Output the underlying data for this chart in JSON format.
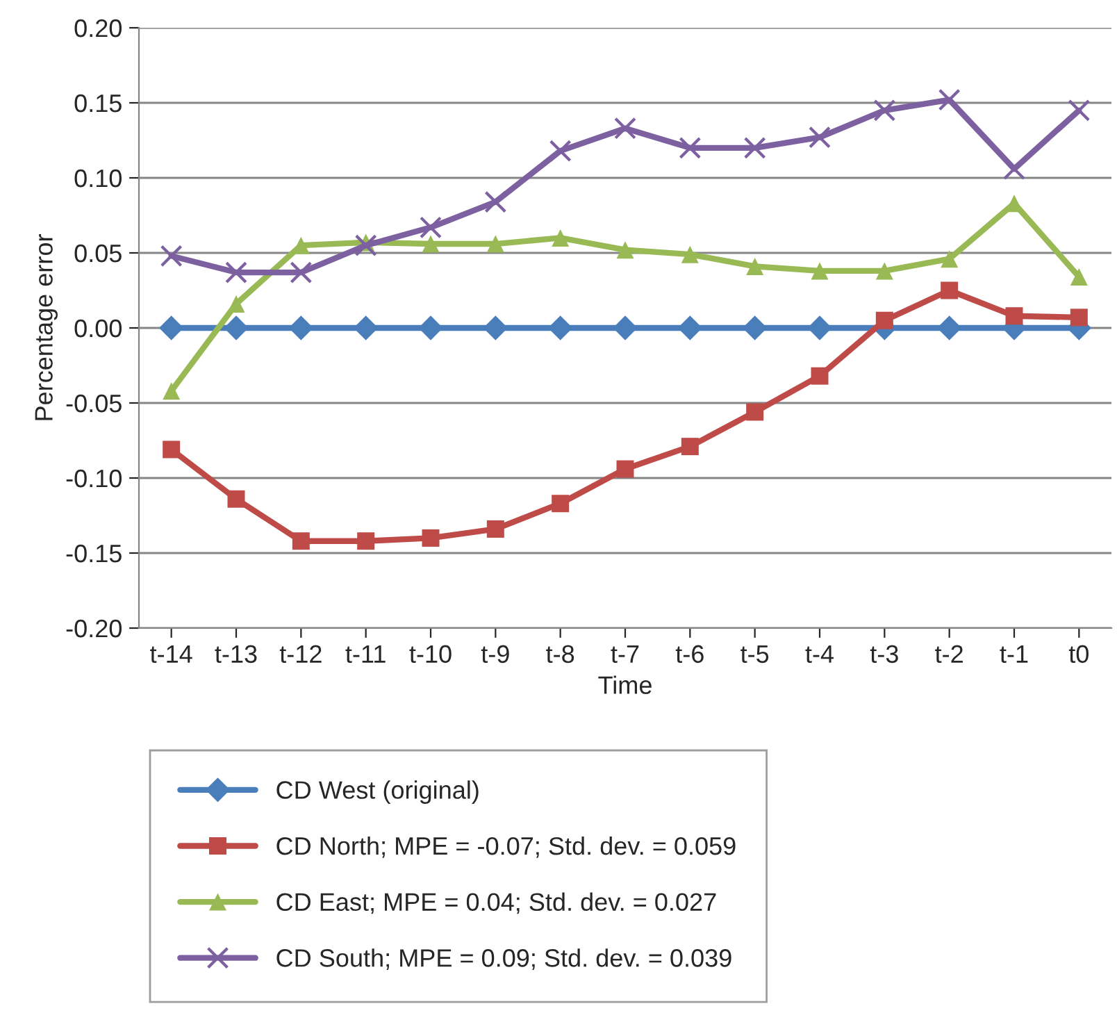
{
  "chart_data": {
    "type": "line",
    "xlabel": "Time",
    "ylabel": "Percentage error",
    "categories": [
      "t-14",
      "t-13",
      "t-12",
      "t-11",
      "t-10",
      "t-9",
      "t-8",
      "t-7",
      "t-6",
      "t-5",
      "t-4",
      "t-3",
      "t-2",
      "t-1",
      "t0"
    ],
    "ylim": [
      -0.2,
      0.2
    ],
    "yticks": [
      {
        "value": -0.2,
        "label": "-0.20"
      },
      {
        "value": -0.15,
        "label": "-0.15"
      },
      {
        "value": -0.1,
        "label": "-0.10"
      },
      {
        "value": -0.05,
        "label": "-0.05"
      },
      {
        "value": 0,
        "label": "0.00"
      },
      {
        "value": 0.05,
        "label": "0.05"
      },
      {
        "value": 0.1,
        "label": "0.10"
      },
      {
        "value": 0.15,
        "label": "0.15"
      },
      {
        "value": 0.2,
        "label": "0.20"
      }
    ],
    "grid": "y",
    "legend": "bottom",
    "line_style": "solid",
    "series": [
      {
        "name": "CD West (original)",
        "color": "#4a7ebb",
        "marker": "diamond",
        "values": [
          0,
          0,
          0,
          0,
          0,
          0,
          0,
          0,
          0,
          0,
          0,
          0,
          0,
          0,
          0
        ]
      },
      {
        "name": "CD North; MPE = -0.07; Std. dev. = 0.059",
        "color": "#be4b48",
        "marker": "square",
        "values": [
          -0.081,
          -0.114,
          -0.142,
          -0.142,
          -0.14,
          -0.134,
          -0.117,
          -0.094,
          -0.079,
          -0.056,
          -0.032,
          0.005,
          0.025,
          0.008,
          0.007
        ]
      },
      {
        "name": "CD East; MPE = 0.04; Std. dev. = 0.027",
        "color": "#98b954",
        "marker": "triangle",
        "values": [
          -0.042,
          0.016,
          0.055,
          0.057,
          0.056,
          0.056,
          0.06,
          0.052,
          0.049,
          0.041,
          0.038,
          0.038,
          0.046,
          0.083,
          0.034
        ]
      },
      {
        "name": "CD South; MPE = 0.09; Std. dev. = 0.039",
        "color": "#7d60a0",
        "marker": "cross",
        "values": [
          0.048,
          0.037,
          0.037,
          0.055,
          0.067,
          0.084,
          0.118,
          0.133,
          0.12,
          0.12,
          0.127,
          0.145,
          0.152,
          0.106,
          0.145
        ]
      }
    ]
  }
}
